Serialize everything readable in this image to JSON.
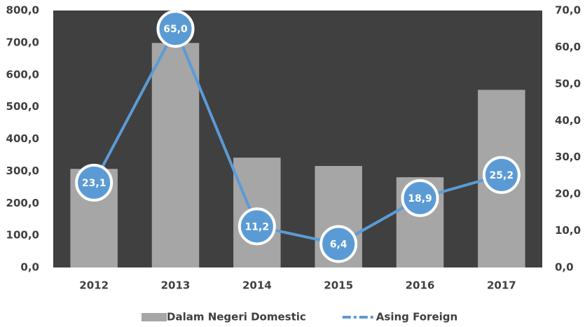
{
  "chart_data": {
    "type": "bar",
    "categories": [
      "2012",
      "2013",
      "2014",
      "2015",
      "2016",
      "2017"
    ],
    "series": [
      {
        "name": "Dalam Negeri Domestic",
        "type": "bar",
        "color": "#a6a6a6",
        "values": [
          307,
          699,
          342,
          316,
          281,
          553
        ]
      },
      {
        "name": "Asing Foreign",
        "type": "line",
        "axis": "y2",
        "color": "#5b9bd5",
        "values": [
          23.1,
          65.0,
          11.2,
          6.4,
          18.9,
          25.2
        ],
        "value_labels": [
          "23,1",
          "65,0",
          "11,2",
          "6,4",
          "18,9",
          "25,2"
        ]
      }
    ],
    "ylim": [
      0,
      800
    ],
    "yticks": [
      {
        "value": 0,
        "label": "0,0"
      },
      {
        "value": 100,
        "label": "100,0"
      },
      {
        "value": 200,
        "label": "200,0"
      },
      {
        "value": 300,
        "label": "300,0"
      },
      {
        "value": 400,
        "label": "400,0"
      },
      {
        "value": 500,
        "label": "500,0"
      },
      {
        "value": 600,
        "label": "600,0"
      },
      {
        "value": 700,
        "label": "700,0"
      },
      {
        "value": 800,
        "label": "800,0"
      }
    ],
    "y2lim": [
      0,
      70
    ],
    "y2ticks": [
      {
        "value": 0,
        "label": "0,0"
      },
      {
        "value": 10,
        "label": "10,0"
      },
      {
        "value": 20,
        "label": "20,0"
      },
      {
        "value": 30,
        "label": "30,0"
      },
      {
        "value": 40,
        "label": "40,0"
      },
      {
        "value": 50,
        "label": "50,0"
      },
      {
        "value": 60,
        "label": "60,0"
      },
      {
        "value": 70,
        "label": "70,0"
      }
    ],
    "legend": "bottom",
    "plot_background": "#404040"
  }
}
